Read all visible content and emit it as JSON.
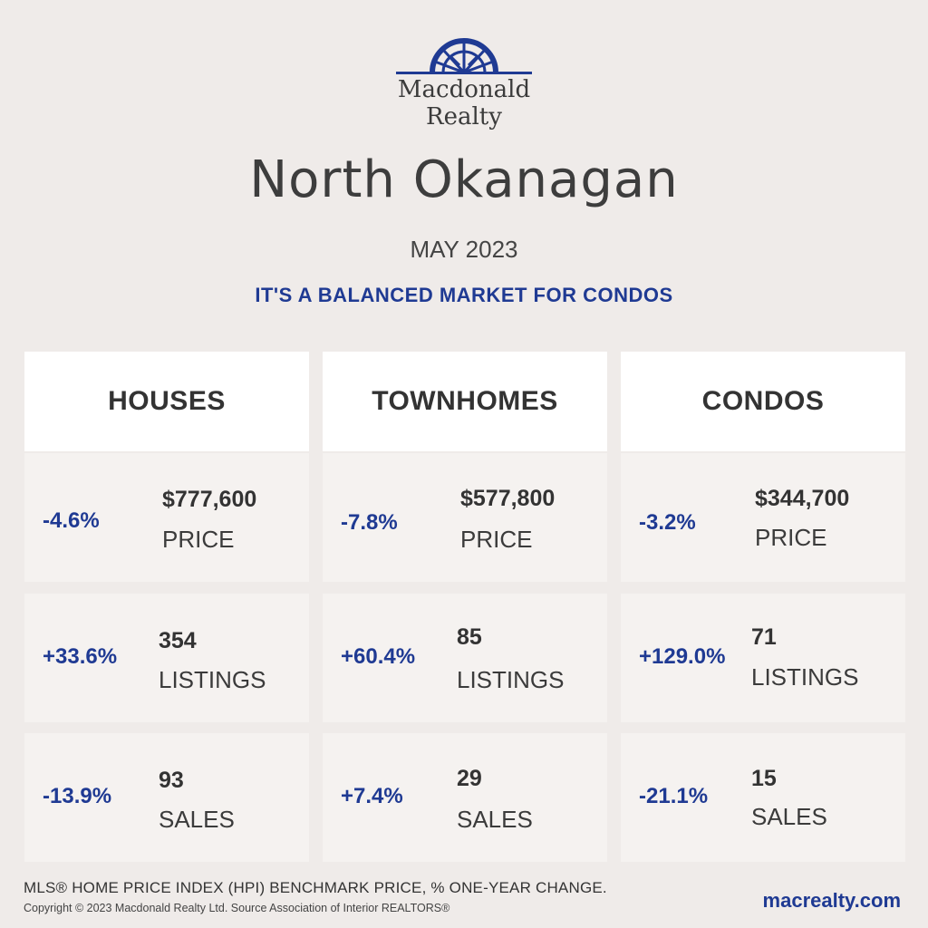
{
  "brand": {
    "line1": "Macdonald",
    "line2": "Realty",
    "color": "#1f3a93"
  },
  "headline": "North Okanagan",
  "period": "MAY 2023",
  "tagline": "IT'S A BALANCED MARKET FOR CONDOS",
  "columns": [
    {
      "title": "HOUSES",
      "rows": [
        {
          "change": "-4.6%",
          "value": "$777,600",
          "label": "PRICE"
        },
        {
          "change": "+33.6%",
          "value": "354",
          "label": "LISTINGS"
        },
        {
          "change": "-13.9%",
          "value": "93",
          "label": "SALES"
        }
      ]
    },
    {
      "title": "TOWNHOMES",
      "rows": [
        {
          "change": "-7.8%",
          "value": "$577,800",
          "label": "PRICE"
        },
        {
          "change": "+60.4%",
          "value": "85",
          "label": "LISTINGS"
        },
        {
          "change": "+7.4%",
          "value": "29",
          "label": "SALES"
        }
      ]
    },
    {
      "title": "CONDOS",
      "rows": [
        {
          "change": "-3.2%",
          "value": "$344,700",
          "label": "PRICE"
        },
        {
          "change": "+129.0%",
          "value": "71",
          "label": "LISTINGS"
        },
        {
          "change": "-21.1%",
          "value": "15",
          "label": "SALES"
        }
      ]
    }
  ],
  "footer": {
    "note": "MLS® HOME PRICE INDEX (HPI) BENCHMARK PRICE, % ONE-YEAR CHANGE.",
    "copyright": "Copyright © 2023 Macdonald Realty Ltd. Source Association of Interior REALTORS®",
    "url": "macrealty.com"
  }
}
